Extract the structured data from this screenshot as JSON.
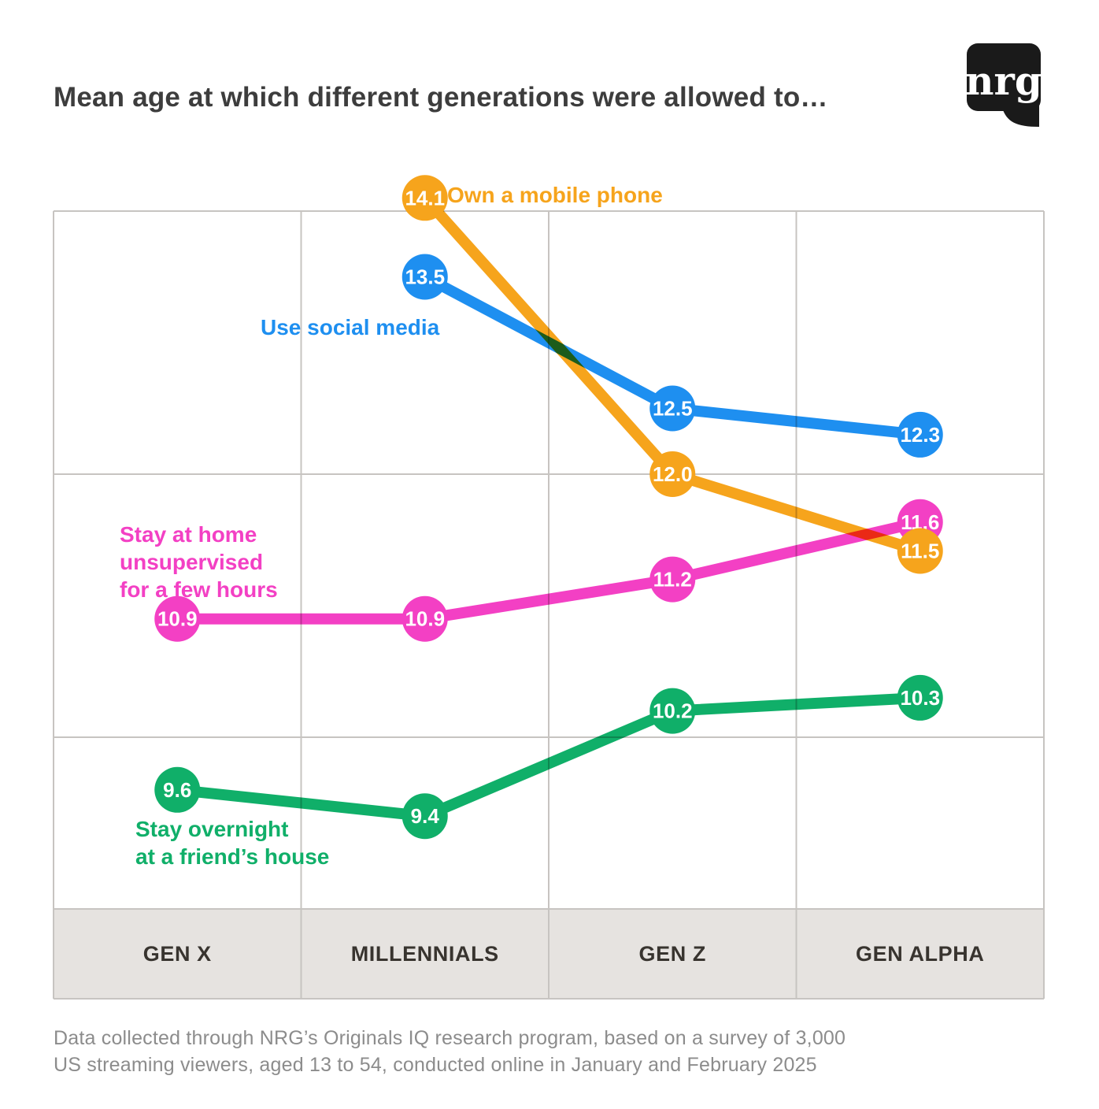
{
  "title": "Mean age at which different generations were allowed to…",
  "logo_text": "nrg",
  "chart_data": {
    "type": "line",
    "categories": [
      "GEN X",
      "MILLENNIALS",
      "GEN Z",
      "GEN ALPHA"
    ],
    "series": [
      {
        "name": "Own a mobile phone",
        "color": "#F6A41C",
        "start_index": 1,
        "values": [
          14.1,
          12.0,
          11.5
        ],
        "label_lines": [
          "Own a mobile phone"
        ]
      },
      {
        "name": "Use social media",
        "color": "#1E8FF0",
        "start_index": 1,
        "values": [
          13.5,
          12.5,
          12.3
        ],
        "label_lines": [
          "Use social media"
        ]
      },
      {
        "name": "Stay at home unsupervised for a few hours",
        "color": "#F340C4",
        "start_index": 0,
        "values": [
          10.9,
          10.9,
          11.2,
          11.6
        ],
        "label_lines": [
          "Stay at home",
          "unsupervised",
          "for a few hours"
        ]
      },
      {
        "name": "Stay overnight at a friend's house",
        "color": "#10AF69",
        "start_index": 0,
        "values": [
          9.6,
          9.4,
          10.2,
          10.3
        ],
        "label_lines": [
          "Stay overnight",
          "at a friend’s house"
        ]
      }
    ],
    "value_labels_shown": true,
    "value_label_format": "one-decimal",
    "ylim": [
      8.6,
      14.6
    ],
    "gridline_values": [
      14,
      12,
      10
    ],
    "grid": true,
    "legend_position": "inline-annotations"
  },
  "colors": {
    "background": "#FFFFFF",
    "grid": "#C7C4C1",
    "band_bg": "#E6E3E0",
    "band_text": "#38342F",
    "title": "#3D3D3D",
    "footer": "#8C8C8C",
    "logo_bg": "#1A1A1A",
    "logo_fg": "#FFFFFF",
    "point_value_text": "#FFFFFF"
  },
  "footer": {
    "lines": [
      "Data collected through NRG’s Originals IQ research program, based on a survey of 3,000",
      "US streaming viewers, aged 13 to 54, conducted online in January and February 2025"
    ]
  }
}
